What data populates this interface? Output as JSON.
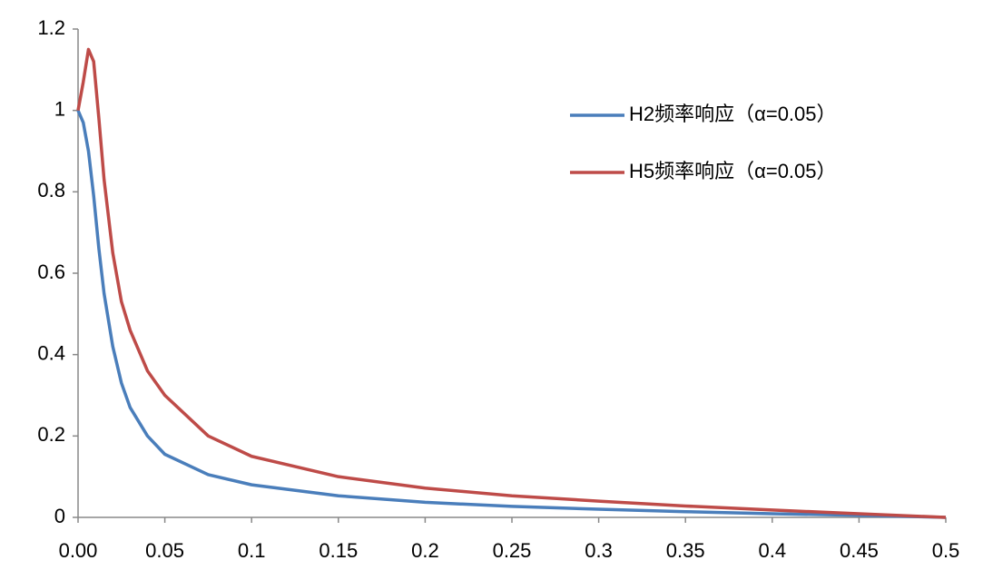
{
  "chart_data": {
    "type": "line",
    "x": [
      0,
      0.003,
      0.006,
      0.009,
      0.012,
      0.015,
      0.02,
      0.025,
      0.03,
      0.04,
      0.05,
      0.075,
      0.1,
      0.15,
      0.2,
      0.25,
      0.3,
      0.35,
      0.4,
      0.45,
      0.5
    ],
    "series": [
      {
        "name": "H2频率响应（α=0.05）",
        "color": "#4a7ebb",
        "values": [
          1,
          0.97,
          0.9,
          0.79,
          0.66,
          0.55,
          0.42,
          0.33,
          0.27,
          0.2,
          0.155,
          0.105,
          0.08,
          0.053,
          0.037,
          0.027,
          0.02,
          0.014,
          0.009,
          0.005,
          0
        ]
      },
      {
        "name": "H5频率响应（α=0.05）",
        "color": "#be4b48",
        "values": [
          1,
          1.07,
          1.15,
          1.12,
          0.98,
          0.83,
          0.65,
          0.53,
          0.46,
          0.36,
          0.3,
          0.2,
          0.15,
          0.1,
          0.072,
          0.053,
          0.04,
          0.028,
          0.018,
          0.009,
          0
        ]
      }
    ],
    "xlim": [
      0,
      0.5
    ],
    "xticks": [
      {
        "value": 0,
        "label": "0.00"
      },
      0.05,
      0.1,
      0.15,
      0.2,
      0.25,
      0.3,
      0.35,
      0.4,
      0.45,
      0.5
    ],
    "ylim": [
      0,
      1.2
    ],
    "yticks": [
      0,
      0.2,
      0.4,
      0.6,
      0.8,
      1,
      1.2
    ],
    "grid": false,
    "legend": "upper-right"
  }
}
